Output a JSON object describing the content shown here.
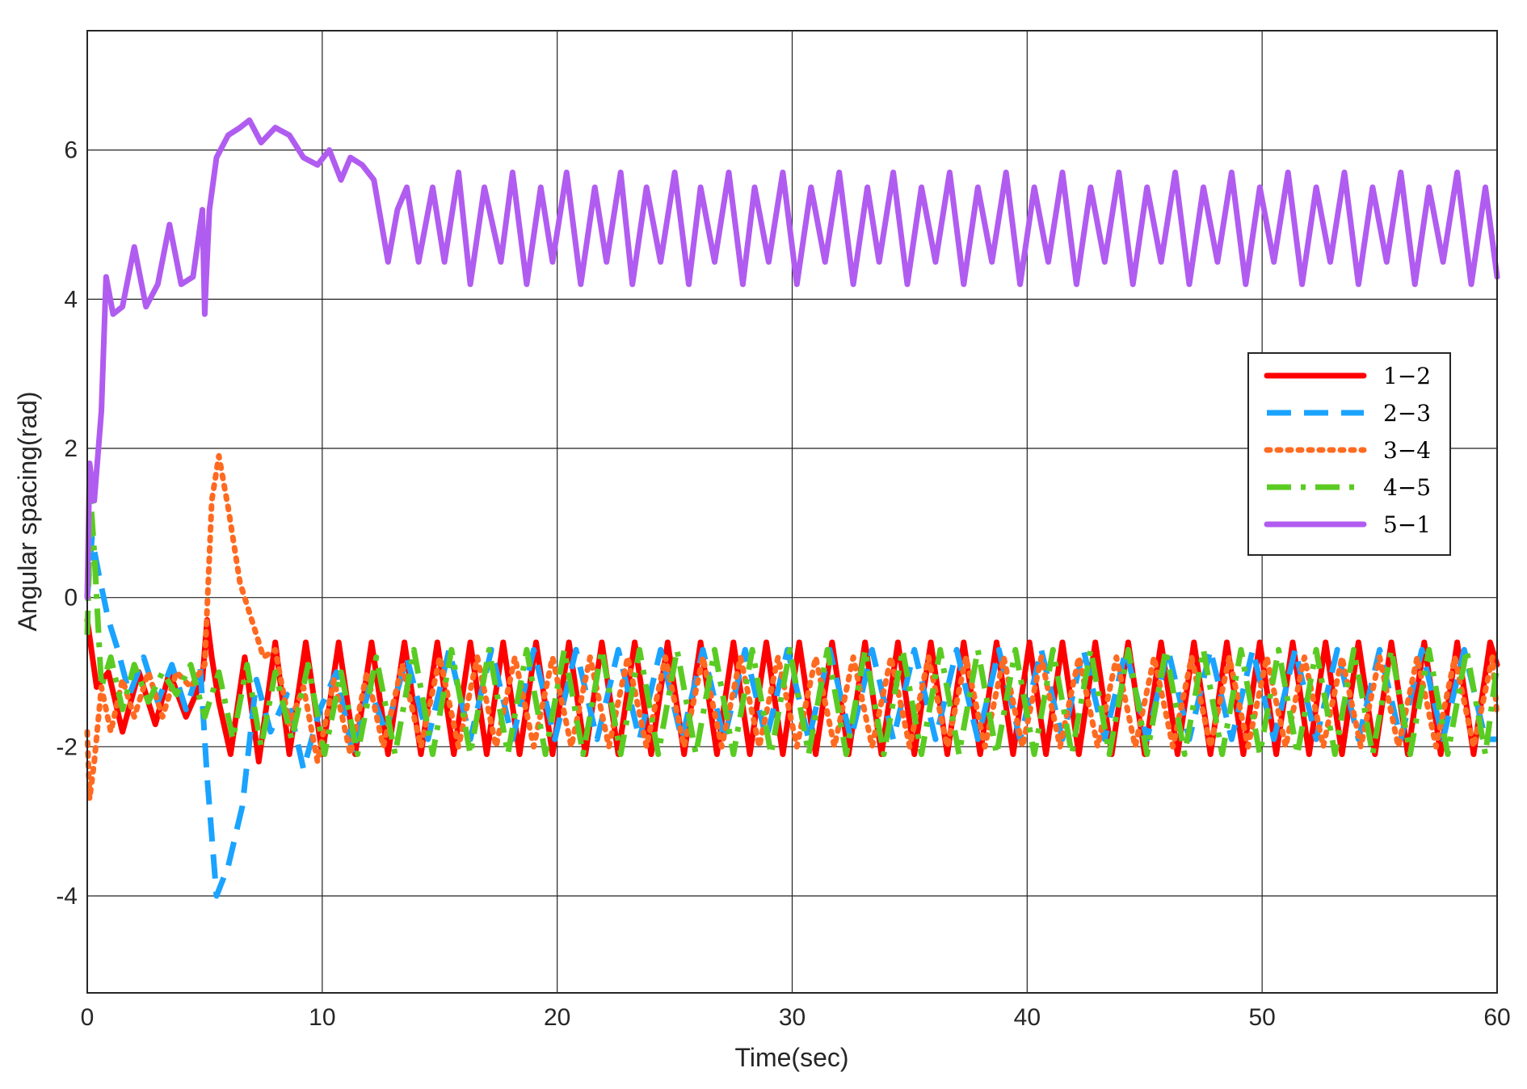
{
  "chart_data": {
    "type": "line",
    "title": "",
    "xlabel": "Time(sec)",
    "ylabel": "Angular spacing(rad)",
    "xlim": [
      0,
      60
    ],
    "ylim": [
      -5.3,
      7.6
    ],
    "xticks": [
      0,
      10,
      20,
      30,
      40,
      50,
      60
    ],
    "yticks": [
      -4,
      -2,
      0,
      2,
      4,
      6
    ],
    "xtick_labels": [
      "0",
      "10",
      "20",
      "30",
      "40",
      "50",
      "60"
    ],
    "ytick_labels": [
      "-4",
      "-2",
      "0",
      "2",
      "4",
      "6"
    ],
    "grid": true,
    "legend_position": "right",
    "series": [
      {
        "name": "1−2",
        "color": "#ff0000",
        "dash": "solid",
        "x": [
          0,
          0.4,
          0.9,
          1.5,
          2.2,
          2.9,
          3.5,
          4.2,
          4.9,
          5.1,
          5.3,
          5.6,
          6.1,
          6.7,
          7.3,
          8,
          8.6,
          9.3,
          10,
          10.7,
          11.4,
          12.1,
          12.8,
          13.5,
          14.2,
          14.9,
          15.6,
          16.3,
          17,
          17.7,
          18.4,
          19.1,
          19.8,
          20.5,
          21.2,
          21.9,
          22.6,
          23.3,
          24,
          24.7,
          25.4,
          26.1,
          26.8,
          27.5,
          28.2,
          28.9,
          29.6,
          30.3,
          31,
          31.7,
          32.4,
          33.1,
          33.8,
          34.5,
          35.2,
          35.9,
          36.6,
          37.3,
          38,
          38.7,
          39.4,
          40.1,
          40.8,
          41.5,
          42.2,
          42.9,
          43.6,
          44.3,
          45,
          45.7,
          46.4,
          47.1,
          47.8,
          48.5,
          49.2,
          49.9,
          50.6,
          51.3,
          52,
          52.7,
          53.4,
          54.1,
          54.8,
          55.5,
          56.2,
          56.9,
          57.6,
          58.3,
          59,
          59.7,
          60
        ],
        "y": [
          -0.3,
          -1.2,
          -1.0,
          -1.8,
          -1.0,
          -1.7,
          -1.0,
          -1.6,
          -1.1,
          -0.3,
          -0.8,
          -1.4,
          -2.1,
          -0.8,
          -2.2,
          -0.6,
          -2.1,
          -0.6,
          -2.1,
          -0.6,
          -2.1,
          -0.6,
          -2.1,
          -0.6,
          -2.1,
          -0.6,
          -2.1,
          -0.6,
          -2.1,
          -0.6,
          -2.1,
          -0.6,
          -2.1,
          -0.6,
          -2.1,
          -0.6,
          -2.1,
          -0.6,
          -2.1,
          -0.6,
          -2.1,
          -0.6,
          -2.1,
          -0.6,
          -2.1,
          -0.6,
          -2.1,
          -0.6,
          -2.1,
          -0.6,
          -2.1,
          -0.6,
          -2.1,
          -0.6,
          -2.1,
          -0.6,
          -2.1,
          -0.6,
          -2.1,
          -0.6,
          -2.1,
          -0.6,
          -2.1,
          -0.6,
          -2.1,
          -0.6,
          -2.1,
          -0.6,
          -2.1,
          -0.6,
          -2.1,
          -0.6,
          -2.1,
          -0.6,
          -2.1,
          -0.6,
          -2.1,
          -0.6,
          -2.1,
          -0.6,
          -2.1,
          -0.6,
          -2.1,
          -0.6,
          -2.1,
          -0.6,
          -2.1,
          -0.6,
          -2.1,
          -0.6,
          -0.9
        ]
      },
      {
        "name": "2−3",
        "color": "#1aa3ff",
        "dash": "dashed",
        "x": [
          0,
          0.2,
          0.5,
          0.9,
          1.3,
          1.8,
          2.4,
          3.0,
          3.6,
          4.2,
          4.8,
          5.1,
          5.5,
          6.0,
          6.6,
          7.2,
          7.8,
          8.5,
          9.2,
          9.9,
          10.6,
          11.3,
          12,
          12.7,
          13.6,
          14.5,
          15.4,
          16.3,
          17.2,
          18.1,
          19,
          19.9,
          20.8,
          21.7,
          22.6,
          23.5,
          24.4,
          25.3,
          26.2,
          27.1,
          28,
          28.9,
          29.8,
          30.7,
          31.6,
          32.5,
          33.4,
          34.3,
          35.2,
          36.1,
          37,
          37.9,
          38.8,
          39.7,
          40.6,
          41.5,
          42.4,
          43.3,
          44.2,
          45.1,
          46,
          46.9,
          47.8,
          48.7,
          49.6,
          50.5,
          51.4,
          52.3,
          53.2,
          54.1,
          55,
          55.9,
          56.8,
          57.7,
          58.6,
          59.5,
          60
        ],
        "y": [
          0.0,
          0.8,
          0.3,
          -0.3,
          -0.7,
          -1.3,
          -0.8,
          -1.4,
          -0.9,
          -1.5,
          -0.9,
          -2.4,
          -4.0,
          -3.6,
          -2.8,
          -1.1,
          -1.8,
          -1.3,
          -2.3,
          -1.5,
          -1.0,
          -2.1,
          -1.2,
          -1.8,
          -0.8,
          -1.9,
          -0.7,
          -1.9,
          -0.7,
          -1.9,
          -0.7,
          -1.9,
          -0.7,
          -1.9,
          -0.7,
          -1.9,
          -0.7,
          -1.9,
          -0.7,
          -1.9,
          -0.7,
          -1.9,
          -0.7,
          -1.9,
          -0.7,
          -1.9,
          -0.7,
          -1.9,
          -0.7,
          -1.9,
          -0.7,
          -1.9,
          -0.7,
          -1.9,
          -0.7,
          -1.9,
          -0.7,
          -1.9,
          -0.7,
          -1.9,
          -0.7,
          -1.9,
          -0.7,
          -1.9,
          -0.7,
          -1.9,
          -0.7,
          -1.9,
          -0.7,
          -1.9,
          -0.7,
          -1.9,
          -0.7,
          -1.9,
          -0.7,
          -1.9,
          -1.9
        ]
      },
      {
        "name": "3−4",
        "color": "#ff6a21",
        "dash": "dotted",
        "x": [
          0,
          0.1,
          0.3,
          0.6,
          1.0,
          1.5,
          2.0,
          2.6,
          3.2,
          3.8,
          4.4,
          5.0,
          5.3,
          5.6,
          6.0,
          6.5,
          7.0,
          7.5,
          8.0,
          8.6,
          9.2,
          9.8,
          10.5,
          11.2,
          11.9,
          12.6,
          13.4,
          14.2,
          15,
          15.8,
          16.6,
          17.4,
          18.2,
          19,
          19.8,
          20.6,
          21.4,
          22.2,
          23,
          23.8,
          24.6,
          25.4,
          26.2,
          27,
          27.8,
          28.6,
          29.4,
          30.2,
          31,
          31.8,
          32.6,
          33.4,
          34.2,
          35,
          35.8,
          36.6,
          37.4,
          38.2,
          39,
          39.8,
          40.6,
          41.4,
          42.2,
          43,
          43.8,
          44.6,
          45.4,
          46.2,
          47,
          47.8,
          48.6,
          49.4,
          50.2,
          51,
          51.8,
          52.6,
          53.4,
          54.2,
          55,
          55.8,
          56.6,
          57.4,
          58.2,
          59,
          59.8,
          60
        ],
        "y": [
          -1.8,
          -2.7,
          -2.2,
          -1.2,
          -1.8,
          -1.1,
          -1.6,
          -1.0,
          -1.6,
          -1.0,
          -1.2,
          -0.9,
          1.3,
          1.9,
          1.2,
          0.2,
          -0.3,
          -0.8,
          -0.7,
          -1.7,
          -1.2,
          -2.2,
          -1.1,
          -2.1,
          -1.0,
          -2.0,
          -0.9,
          -2.0,
          -0.8,
          -2.0,
          -0.8,
          -2.0,
          -0.8,
          -2.0,
          -0.8,
          -2.0,
          -0.8,
          -2.0,
          -0.8,
          -2.0,
          -0.8,
          -2.0,
          -0.8,
          -2.0,
          -0.8,
          -2.0,
          -0.8,
          -2.0,
          -0.8,
          -2.0,
          -0.8,
          -2.0,
          -0.8,
          -2.0,
          -0.8,
          -2.0,
          -0.8,
          -2.0,
          -0.8,
          -2.0,
          -0.8,
          -2.0,
          -0.8,
          -2.0,
          -0.8,
          -2.0,
          -0.8,
          -2.0,
          -0.8,
          -2.0,
          -0.8,
          -2.0,
          -0.8,
          -2.0,
          -0.8,
          -2.0,
          -0.8,
          -2.0,
          -0.8,
          -2.0,
          -0.8,
          -2.0,
          -0.8,
          -2.0,
          -0.8,
          -1.6
        ]
      },
      {
        "name": "4−5",
        "color": "#5acb22",
        "dash": "dashdot",
        "x": [
          0,
          0.15,
          0.3,
          0.6,
          1.0,
          1.5,
          2.0,
          2.6,
          3.2,
          3.8,
          4.4,
          5.0,
          5.6,
          6.2,
          6.8,
          7.4,
          8.0,
          8.7,
          9.4,
          10.1,
          10.8,
          11.5,
          12.3,
          13.1,
          13.9,
          14.7,
          15.5,
          16.3,
          17.1,
          17.9,
          18.7,
          19.5,
          20.3,
          21.1,
          21.9,
          22.7,
          23.5,
          24.3,
          25.1,
          25.9,
          26.7,
          27.5,
          28.3,
          29.1,
          29.9,
          30.7,
          31.5,
          32.3,
          33.1,
          33.9,
          34.7,
          35.5,
          36.3,
          37.1,
          37.9,
          38.7,
          39.5,
          40.3,
          41.1,
          41.9,
          42.7,
          43.5,
          44.3,
          45.1,
          45.9,
          46.7,
          47.5,
          48.3,
          49.1,
          49.9,
          50.7,
          51.5,
          52.3,
          53.1,
          53.9,
          54.7,
          55.5,
          56.3,
          57.1,
          57.9,
          58.7,
          59.5,
          60
        ],
        "y": [
          -0.5,
          1.3,
          0.6,
          -1.2,
          -0.8,
          -1.5,
          -0.9,
          -1.4,
          -1.0,
          -1.3,
          -0.9,
          -1.6,
          -1.0,
          -1.9,
          -0.9,
          -2.0,
          -1.0,
          -1.9,
          -0.9,
          -2.1,
          -1.0,
          -2.1,
          -0.8,
          -2.1,
          -0.7,
          -2.1,
          -0.7,
          -2.1,
          -0.7,
          -2.1,
          -0.7,
          -2.1,
          -0.7,
          -2.1,
          -0.7,
          -2.1,
          -0.7,
          -2.1,
          -0.7,
          -2.1,
          -0.7,
          -2.1,
          -0.7,
          -2.1,
          -0.7,
          -2.1,
          -0.7,
          -2.1,
          -0.7,
          -2.1,
          -0.7,
          -2.1,
          -0.7,
          -2.1,
          -0.7,
          -2.1,
          -0.7,
          -2.1,
          -0.7,
          -2.1,
          -0.7,
          -2.1,
          -0.7,
          -2.1,
          -0.7,
          -2.1,
          -0.7,
          -2.1,
          -0.7,
          -2.1,
          -0.7,
          -2.1,
          -0.7,
          -2.1,
          -0.7,
          -2.1,
          -0.7,
          -2.1,
          -0.7,
          -2.1,
          -0.7,
          -2.1,
          -0.9
        ]
      },
      {
        "name": "5−1",
        "color": "#b15cf0",
        "dash": "solid",
        "x": [
          0,
          0.1,
          0.3,
          0.6,
          0.8,
          1.1,
          1.5,
          2.0,
          2.5,
          3.0,
          3.5,
          4.0,
          4.5,
          4.9,
          5.0,
          5.05,
          5.2,
          5.5,
          6.0,
          6.5,
          6.9,
          7.4,
          8.0,
          8.6,
          9.2,
          9.8,
          10.3,
          10.8,
          11.2,
          11.7,
          12.2,
          12.8,
          13.2,
          13.6,
          14.1,
          14.7,
          15.2,
          15.8,
          16.3,
          16.9,
          17.6,
          18.1,
          18.7,
          19.3,
          19.8,
          20.4,
          21.0,
          21.6,
          22.1,
          22.7,
          23.2,
          23.8,
          24.4,
          25.0,
          25.6,
          26.1,
          26.7,
          27.3,
          27.9,
          28.4,
          29.0,
          29.6,
          30.2,
          30.8,
          31.4,
          32.0,
          32.6,
          33.2,
          33.7,
          34.3,
          34.9,
          35.5,
          36.1,
          36.7,
          37.3,
          37.9,
          38.5,
          39.1,
          39.7,
          40.3,
          40.9,
          41.5,
          42.1,
          42.7,
          43.3,
          43.9,
          44.5,
          45.1,
          45.7,
          46.3,
          46.9,
          47.5,
          48.1,
          48.7,
          49.3,
          49.9,
          50.5,
          51.1,
          51.7,
          52.3,
          52.9,
          53.5,
          54.1,
          54.7,
          55.3,
          55.9,
          56.5,
          57.1,
          57.7,
          58.3,
          58.9,
          59.5,
          60
        ],
        "y": [
          0.0,
          1.8,
          1.3,
          2.5,
          4.3,
          3.8,
          3.9,
          4.7,
          3.9,
          4.2,
          5.0,
          4.2,
          4.3,
          5.2,
          3.8,
          4.2,
          5.2,
          5.9,
          6.2,
          6.3,
          6.4,
          6.1,
          6.3,
          6.2,
          5.9,
          5.8,
          6.0,
          5.6,
          5.9,
          5.8,
          5.6,
          4.5,
          5.2,
          5.5,
          4.5,
          5.5,
          4.5,
          5.7,
          4.2,
          5.5,
          4.5,
          5.7,
          4.2,
          5.5,
          4.5,
          5.7,
          4.2,
          5.5,
          4.5,
          5.7,
          4.2,
          5.5,
          4.5,
          5.7,
          4.2,
          5.5,
          4.5,
          5.7,
          4.2,
          5.5,
          4.5,
          5.7,
          4.2,
          5.5,
          4.5,
          5.7,
          4.2,
          5.5,
          4.5,
          5.7,
          4.2,
          5.5,
          4.5,
          5.7,
          4.2,
          5.5,
          4.5,
          5.7,
          4.2,
          5.5,
          4.5,
          5.7,
          4.2,
          5.5,
          4.5,
          5.7,
          4.2,
          5.5,
          4.5,
          5.7,
          4.2,
          5.5,
          4.5,
          5.7,
          4.2,
          5.5,
          4.5,
          5.7,
          4.2,
          5.5,
          4.5,
          5.7,
          4.2,
          5.5,
          4.5,
          5.7,
          4.2,
          5.5,
          4.5,
          5.7,
          4.2,
          5.5,
          4.3
        ]
      }
    ]
  }
}
